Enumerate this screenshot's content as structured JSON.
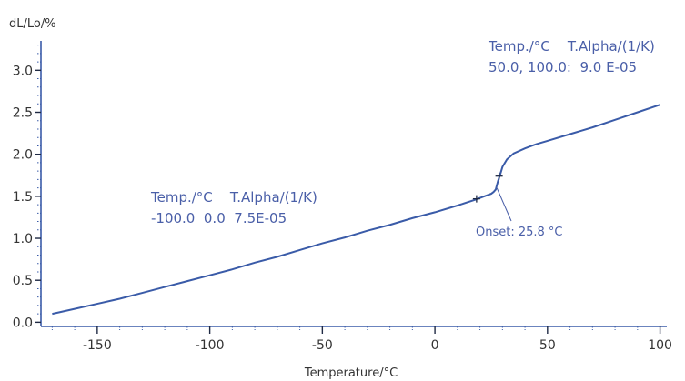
{
  "chart_data": {
    "type": "line",
    "ylabel": "dL/Lo/%",
    "xlabel": "Temperature/°C",
    "xlim": [
      -175,
      103
    ],
    "ylim": [
      -0.05,
      3.35
    ],
    "x_ticks": [
      -150,
      -100,
      -50,
      0,
      50,
      100
    ],
    "x_tick_labels": [
      "-150",
      "-100",
      "-50",
      "0",
      "50",
      "100"
    ],
    "y_ticks": [
      0.0,
      0.5,
      1.0,
      1.5,
      2.0,
      2.5,
      3.0
    ],
    "y_tick_labels": [
      "0.0",
      "0.5",
      "1.0",
      "1.5",
      "2.0",
      "2.5",
      "3.0"
    ],
    "grid": false,
    "series": [
      {
        "color": "#3a5ba8",
        "x": [
          -170,
          -160,
          -150,
          -140,
          -130,
          -120,
          -110,
          -100,
          -90,
          -80,
          -70,
          -60,
          -50,
          -40,
          -30,
          -20,
          -10,
          0,
          10,
          18,
          22,
          25,
          26,
          27,
          28,
          29,
          30,
          32,
          35,
          40,
          45,
          50,
          60,
          70,
          80,
          90,
          100
        ],
        "y": [
          0.1,
          0.16,
          0.22,
          0.28,
          0.35,
          0.42,
          0.49,
          0.56,
          0.63,
          0.71,
          0.78,
          0.86,
          0.94,
          1.01,
          1.09,
          1.16,
          1.24,
          1.31,
          1.39,
          1.46,
          1.5,
          1.53,
          1.55,
          1.58,
          1.68,
          1.76,
          1.85,
          1.94,
          2.01,
          2.07,
          2.12,
          2.16,
          2.24,
          2.32,
          2.41,
          2.5,
          2.59
        ]
      }
    ],
    "markers": [
      {
        "x": 18.5,
        "y": 1.47
      },
      {
        "x": 28.5,
        "y": 1.74
      }
    ],
    "onset_leader": {
      "x": 27.5,
      "y": 1.6
    },
    "annotations": {
      "upper": {
        "line1": "Temp./°C    T.Alpha/(1/K)",
        "line2": "50.0, 100.0:  9.0 E-05"
      },
      "lower": {
        "line1": "Temp./°C    T.Alpha/(1/K)",
        "line2": "-100.0  0.0  7.5E-05"
      },
      "onset": "Onset: 25.8 °C"
    }
  }
}
